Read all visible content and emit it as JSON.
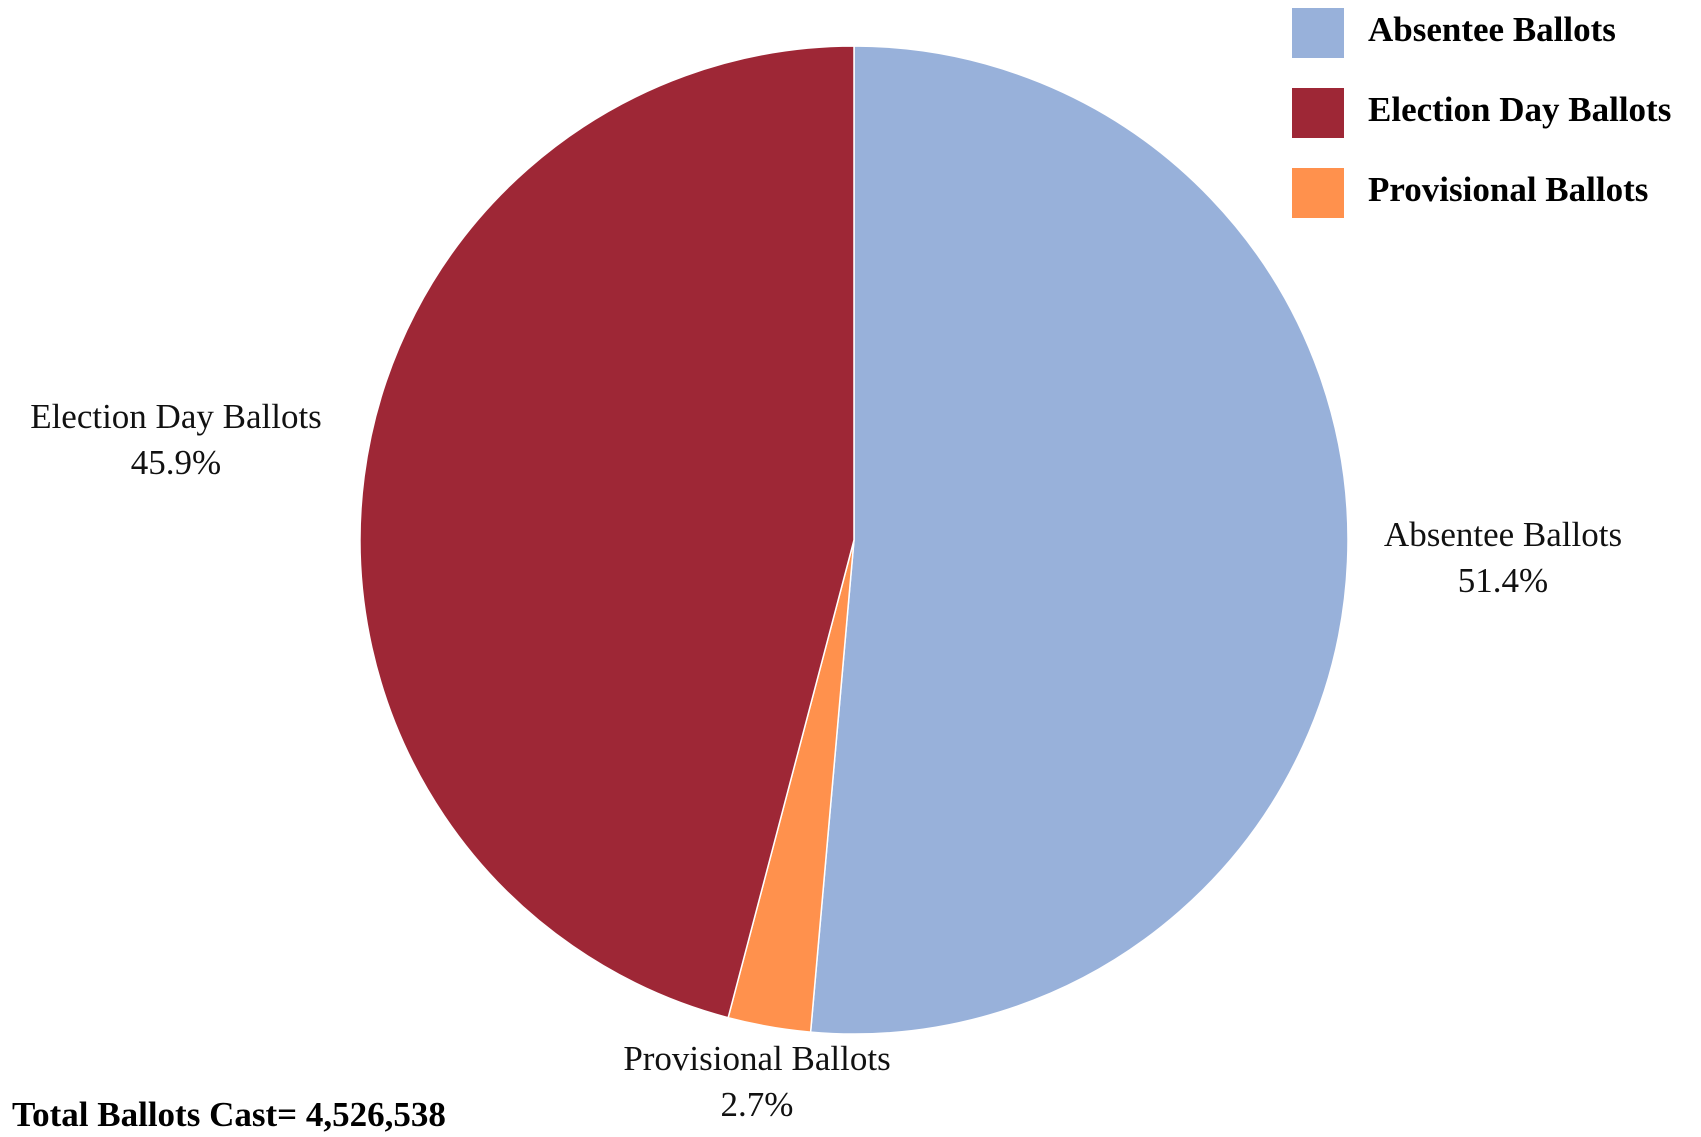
{
  "chart_data": {
    "type": "pie",
    "title": "",
    "slices": [
      {
        "name": "Absentee Ballots",
        "percent": 51.4,
        "percent_label": "51.4%",
        "color": "#98b1da"
      },
      {
        "name": "Provisional Ballots",
        "percent": 2.7,
        "percent_label": "2.7%",
        "color": "#ff914d"
      },
      {
        "name": "Election Day Ballots",
        "percent": 45.9,
        "percent_label": "45.9%",
        "color": "#9e2736"
      }
    ],
    "legend": {
      "placement": "top-right",
      "entries": [
        "Absentee Ballots",
        "Election Day Ballots",
        "Provisional Ballots"
      ]
    },
    "footnote": "Total Ballots Cast= 4,526,538"
  }
}
